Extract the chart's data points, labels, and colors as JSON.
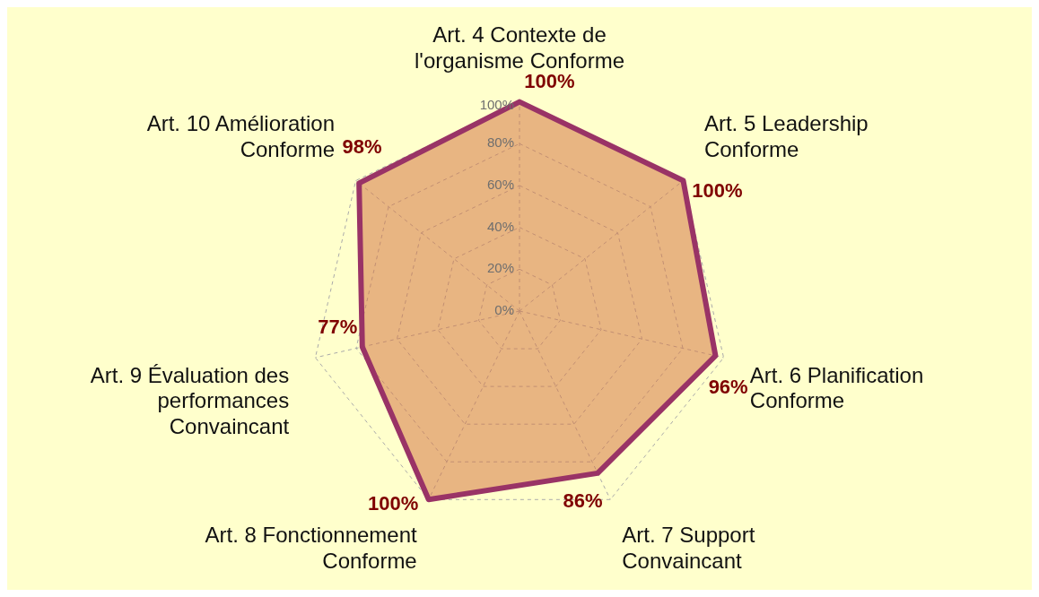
{
  "chart_data": {
    "type": "radar",
    "categories": [
      "Art. 4 Contexte de l'organisme Conforme",
      "Art. 5 Leadership Conforme",
      "Art. 6 Planification Conforme",
      "Art. 7 Support Convaincant",
      "Art. 8 Fonctionnement Conforme",
      "Art. 9 Évaluation des performances Convaincant",
      "Art. 10 Amélioration Conforme"
    ],
    "series": [
      {
        "color": "#993366",
        "values": [
          100,
          100,
          96,
          86,
          100,
          77,
          98
        ],
        "value_labels": [
          "100%",
          "100%",
          "96%",
          "86%",
          "100%",
          "77%",
          "98%"
        ]
      }
    ],
    "ylim": [
      0,
      100
    ],
    "yticks": [
      {
        "value": 0,
        "label": "0%"
      },
      {
        "value": 20,
        "label": "20%"
      },
      {
        "value": 40,
        "label": "40%"
      },
      {
        "value": 60,
        "label": "60%"
      },
      {
        "value": 80,
        "label": "80%"
      },
      {
        "value": 100,
        "label": "100%"
      }
    ],
    "grid": true,
    "legend": false
  }
}
